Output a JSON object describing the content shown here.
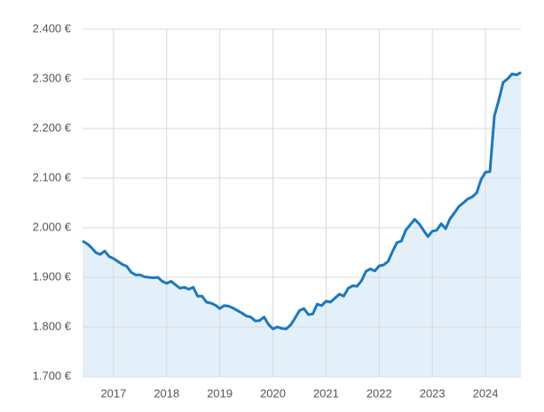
{
  "chart_data": {
    "type": "area_line",
    "x": [
      2016.417,
      2016.5,
      2016.583,
      2016.667,
      2016.75,
      2016.833,
      2016.917,
      2017,
      2017.083,
      2017.167,
      2017.25,
      2017.333,
      2017.417,
      2017.5,
      2017.583,
      2017.667,
      2017.75,
      2017.833,
      2017.917,
      2018,
      2018.083,
      2018.167,
      2018.25,
      2018.333,
      2018.417,
      2018.5,
      2018.583,
      2018.667,
      2018.75,
      2018.833,
      2018.917,
      2019,
      2019.083,
      2019.167,
      2019.25,
      2019.333,
      2019.417,
      2019.5,
      2019.583,
      2019.667,
      2019.75,
      2019.833,
      2019.917,
      2020,
      2020.083,
      2020.167,
      2020.25,
      2020.333,
      2020.417,
      2020.5,
      2020.583,
      2020.667,
      2020.75,
      2020.833,
      2020.917,
      2021,
      2021.083,
      2021.167,
      2021.25,
      2021.333,
      2021.417,
      2021.5,
      2021.583,
      2021.667,
      2021.75,
      2021.833,
      2021.917,
      2022,
      2022.083,
      2022.167,
      2022.25,
      2022.333,
      2022.417,
      2022.5,
      2022.583,
      2022.667,
      2022.75,
      2022.833,
      2022.917,
      2023,
      2023.083,
      2023.167,
      2023.25,
      2023.333,
      2023.417,
      2023.5,
      2023.583,
      2023.667,
      2023.75,
      2023.833,
      2023.917,
      2024,
      2024.083,
      2024.167,
      2024.25,
      2024.333,
      2024.417,
      2024.5,
      2024.583,
      2024.667
    ],
    "values": [
      1973,
      1968,
      1960,
      1950,
      1946,
      1953,
      1942,
      1938,
      1932,
      1926,
      1922,
      1910,
      1905,
      1905,
      1901,
      1900,
      1899,
      1900,
      1892,
      1888,
      1892,
      1885,
      1878,
      1880,
      1876,
      1880,
      1862,
      1862,
      1850,
      1848,
      1844,
      1837,
      1843,
      1842,
      1838,
      1833,
      1828,
      1822,
      1820,
      1812,
      1813,
      1820,
      1805,
      1796,
      1800,
      1797,
      1796,
      1804,
      1818,
      1833,
      1837,
      1825,
      1826,
      1846,
      1843,
      1852,
      1850,
      1858,
      1866,
      1862,
      1878,
      1883,
      1882,
      1893,
      1912,
      1917,
      1913,
      1923,
      1925,
      1932,
      1952,
      1970,
      1973,
      1995,
      2006,
      2017,
      2008,
      1995,
      1982,
      1993,
      1995,
      2008,
      1998,
      2018,
      2030,
      2043,
      2050,
      2058,
      2062,
      2070,
      2097,
      2112,
      2113,
      2225,
      2257,
      2293,
      2300,
      2310,
      2308,
      2313
    ],
    "color": "#1a78c2",
    "fill": "#e3f0f9",
    "xlim": [
      2016.417,
      2024.667
    ],
    "xticks": [
      2017,
      2018,
      2019,
      2020,
      2021,
      2022,
      2023,
      2024
    ],
    "ylim": [
      1700,
      2400
    ],
    "yticks": [
      {
        "value": 1700,
        "label": "1.700 €"
      },
      {
        "value": 1800,
        "label": "1.800 €"
      },
      {
        "value": 1900,
        "label": "1.900 €"
      },
      {
        "value": 2000,
        "label": "2.000 €"
      },
      {
        "value": 2100,
        "label": "2.100 €"
      },
      {
        "value": 2200,
        "label": "2.200 €"
      },
      {
        "value": 2300,
        "label": "2.300 €"
      },
      {
        "value": 2400,
        "label": "2.400 €"
      }
    ],
    "grid": true
  }
}
